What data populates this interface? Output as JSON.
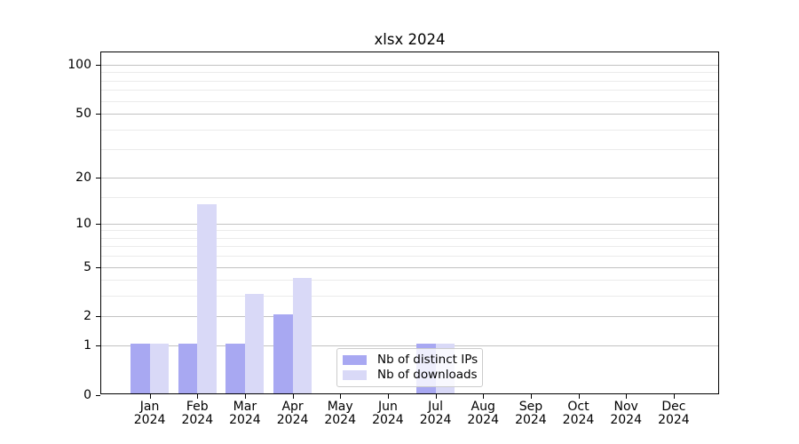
{
  "chart_data": {
    "type": "bar",
    "title": "xlsx 2024",
    "x_categories": [
      "Jan",
      "Feb",
      "Mar",
      "Apr",
      "May",
      "Jun",
      "Jul",
      "Aug",
      "Sep",
      "Oct",
      "Nov",
      "Dec"
    ],
    "x_year_label": "2024",
    "series": [
      {
        "key": "distinct-ips",
        "name": "Nb of distinct IPs",
        "color": "#a8a8f2",
        "values": [
          1,
          1,
          1,
          2,
          0,
          0,
          1,
          0,
          0,
          0,
          0,
          0
        ]
      },
      {
        "key": "downloads",
        "name": "Nb of downloads",
        "color": "#d9d9f7",
        "values": [
          1,
          13,
          3,
          4,
          0,
          0,
          1,
          0,
          0,
          0,
          0,
          0
        ]
      }
    ],
    "y_scale": "log1p",
    "ylim": [
      0,
      119
    ],
    "y_major_ticks": [
      0,
      1,
      2,
      5,
      10,
      20,
      50,
      100
    ],
    "y_minor_ticks": [
      3,
      4,
      6,
      7,
      8,
      9,
      15,
      30,
      40,
      60,
      70,
      80,
      90
    ],
    "grid": "horizontal",
    "legend_position": "lower center"
  },
  "colors": {
    "grid_major": "#c2c2c2",
    "grid_minor": "#ebebeb",
    "spine": "#000000",
    "legend_border": "#cccccc",
    "background": "#ffffff"
  }
}
